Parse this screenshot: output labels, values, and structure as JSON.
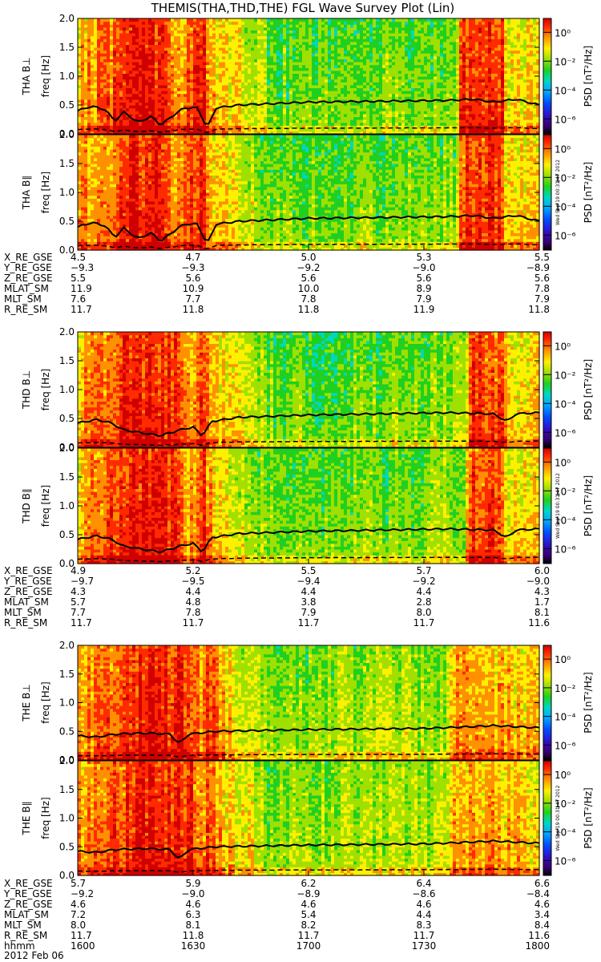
{
  "title": "THEMIS(THA,THD,THE) FGL Wave Survey Plot (Lin)",
  "colorbar": {
    "label": "PSD [nT²/Hz]",
    "ticks": [
      "10⁰",
      "10⁻²",
      "10⁻⁴",
      "10⁻⁶"
    ]
  },
  "stamp": "Wed Sep 19 00:31:47 2012",
  "panels": [
    {
      "ylabel1": "THA B⊥",
      "ylabel2": "freq [Hz]"
    },
    {
      "ylabel1": "THA B∥",
      "ylabel2": "freq [Hz]"
    },
    {
      "ylabel1": "THD B⊥",
      "ylabel2": "freq [Hz]"
    },
    {
      "ylabel1": "THD B∥",
      "ylabel2": "freq [Hz]"
    },
    {
      "ylabel1": "THE B⊥",
      "ylabel2": "freq [Hz]"
    },
    {
      "ylabel1": "THE B∥",
      "ylabel2": "freq [Hz]"
    }
  ],
  "ephem": [
    {
      "labels": [
        "X_RE_GSE",
        "Y_RE_GSE",
        "Z_RE_GSE",
        "MLAT_SM",
        "MLT_SM",
        "R_RE_SM"
      ],
      "rows": [
        [
          "4.5",
          "4.7",
          "5.0",
          "5.3",
          "5.5"
        ],
        [
          "−9.3",
          "−9.3",
          "−9.2",
          "−9.0",
          "−8.9"
        ],
        [
          "5.5",
          "5.6",
          "5.6",
          "5.6",
          "5.6"
        ],
        [
          "11.9",
          "10.9",
          "10.0",
          "8.9",
          "7.8"
        ],
        [
          "7.6",
          "7.7",
          "7.8",
          "7.9",
          "7.9"
        ],
        [
          "11.7",
          "11.8",
          "11.8",
          "11.9",
          "11.8"
        ]
      ]
    },
    {
      "labels": [
        "X_RE_GSE",
        "Y_RE_GSE",
        "Z_RE_GSE",
        "MLAT_SM",
        "MLT_SM",
        "R_RE_SM"
      ],
      "rows": [
        [
          "4.9",
          "5.2",
          "5.5",
          "5.7",
          "6.0"
        ],
        [
          "−9.7",
          "−9.5",
          "−9.4",
          "−9.2",
          "−9.0"
        ],
        [
          "4.3",
          "4.4",
          "4.4",
          "4.4",
          "4.3"
        ],
        [
          "5.7",
          "4.8",
          "3.8",
          "2.8",
          "1.7"
        ],
        [
          "7.7",
          "7.8",
          "7.9",
          "8.0",
          "8.1"
        ],
        [
          "11.7",
          "11.7",
          "11.7",
          "11.7",
          "11.6"
        ]
      ]
    },
    {
      "labels": [
        "X_RE_GSE",
        "Y_RE_GSE",
        "Z_RE_GSE",
        "MLAT_SM",
        "MLT_SM",
        "R_RE_SM",
        "hhmm"
      ],
      "rows": [
        [
          "5.7",
          "5.9",
          "6.2",
          "6.4",
          "6.6"
        ],
        [
          "−9.2",
          "−9.0",
          "−8.9",
          "−8.6",
          "−8.4"
        ],
        [
          "4.6",
          "4.6",
          "4.6",
          "4.6",
          "4.6"
        ],
        [
          "7.2",
          "6.3",
          "5.4",
          "4.4",
          "3.4"
        ],
        [
          "8.0",
          "8.1",
          "8.2",
          "8.3",
          "8.4"
        ],
        [
          "11.7",
          "11.8",
          "11.7",
          "11.7",
          "11.6"
        ],
        [
          "1600",
          "1630",
          "1700",
          "1730",
          "1800"
        ]
      ]
    }
  ],
  "date_label": "2012 Feb 06",
  "chart_data": {
    "type": "heatmap",
    "title": "THEMIS(THA,THD,THE) FGL Wave Survey Plot (Lin)",
    "x_ticks": [
      "1600",
      "1630",
      "1700",
      "1730",
      "1800"
    ],
    "xlim": [
      "1600",
      "1800"
    ],
    "ylabel": "freq [Hz]",
    "ylim": [
      0,
      2.0
    ],
    "y_ticks": [
      0.0,
      0.5,
      1.0,
      1.5,
      2.0
    ],
    "colorbar_label": "PSD [nT²/Hz]",
    "color_scale": "log",
    "color_ticks": [
      1,
      0.01,
      0.0001,
      1e-06
    ],
    "series": [
      {
        "name": "THA B⊥"
      },
      {
        "name": "THA B∥"
      },
      {
        "name": "THD B⊥"
      },
      {
        "name": "THD B∥"
      },
      {
        "name": "THE B⊥"
      },
      {
        "name": "THE B∥"
      }
    ]
  }
}
